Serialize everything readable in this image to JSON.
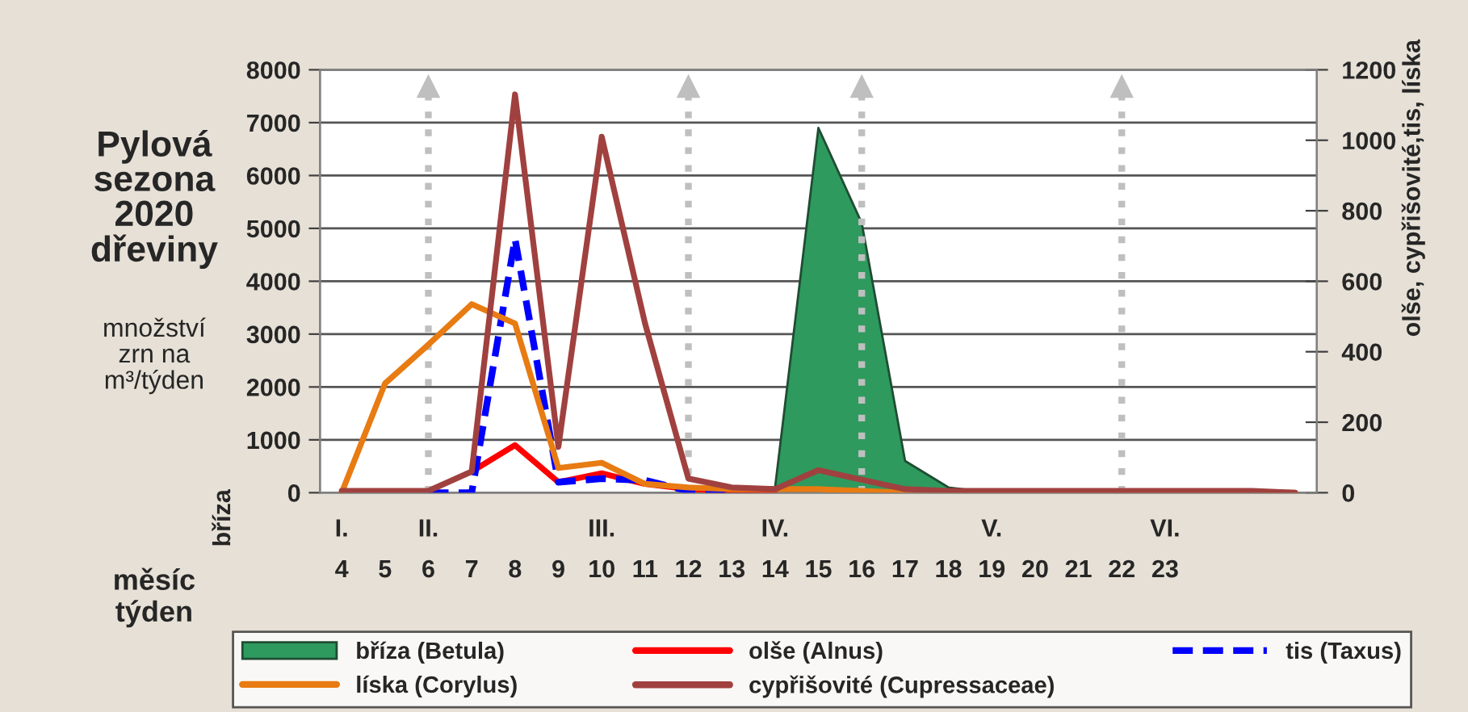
{
  "chart_data": {
    "type": "line",
    "title": "Pylová\nsezona\n2020\ndřeviny",
    "subtitle": "množství\nzrn na\nm³/týden",
    "ylabel": "bříza",
    "y2label": "olše, cypřišovité,tis, líska",
    "categories": [
      "I.\n4",
      "5",
      "II.\n6",
      "7",
      "8",
      "9",
      "III.\n10",
      "11",
      "12",
      "13",
      "IV.\n14",
      "15",
      "16",
      "17",
      "18",
      "V.\n19",
      "20",
      "21",
      "22",
      "VI.\n23",
      null,
      null,
      null
    ],
    "series": [
      {
        "name": "bříza (Betula)",
        "type": "area",
        "color": "#2e9a5e",
        "values": [
          0,
          0,
          0,
          0,
          0,
          0,
          0,
          0,
          0,
          0,
          100,
          6900,
          5100,
          600,
          100,
          0,
          0,
          0,
          0,
          0,
          0,
          0,
          0
        ]
      },
      {
        "name": "olše (Alnus)",
        "axis": "y2",
        "color": "#ff0000",
        "line_style": "solid",
        "values": [
          null,
          null,
          null,
          60,
          135,
          30,
          55,
          25,
          10,
          5,
          5,
          null,
          null,
          null,
          null,
          null,
          null,
          null,
          null,
          null,
          null,
          null,
          null
        ]
      },
      {
        "name": "tis (Taxus)",
        "axis": "y2",
        "color": "#0000ff",
        "line_style": "dashed",
        "values": [
          null,
          null,
          0,
          0,
          720,
          30,
          40,
          35,
          5,
          0,
          null,
          null,
          null,
          null,
          null,
          null,
          null,
          null,
          null,
          null,
          null,
          null,
          null
        ]
      },
      {
        "name": "líska (Corylus)",
        "axis": "y2",
        "color": "#e87b12",
        "line_style": "solid",
        "values": [
          0,
          310,
          420,
          535,
          480,
          70,
          85,
          25,
          15,
          10,
          10,
          10,
          5,
          0,
          0,
          0,
          0,
          0,
          0,
          0,
          0,
          0,
          0
        ]
      },
      {
        "name": "cypřišovité (Cupressaceae)",
        "axis": "y2",
        "color": "#a0413f",
        "line_style": "solid",
        "values": [
          5,
          5,
          5,
          60,
          1130,
          130,
          1010,
          480,
          40,
          15,
          10,
          64,
          37,
          10,
          5,
          5,
          5,
          5,
          5,
          5,
          5,
          5,
          0
        ]
      }
    ],
    "ylim": [
      0,
      8000
    ],
    "yticks": [
      0,
      1000,
      2000,
      3000,
      4000,
      5000,
      6000,
      7000,
      8000
    ],
    "y2lim": [
      0,
      1200
    ],
    "y2ticks": [
      0,
      200,
      400,
      600,
      800,
      1000,
      1200
    ],
    "grid": "y",
    "legend": "bottom",
    "ref_lines": [
      {
        "axis": "x",
        "value": "II.\n6",
        "color": "#bfbfbf",
        "line_style": "dotted"
      },
      {
        "axis": "x",
        "value": "12",
        "color": "#bfbfbf",
        "line_style": "dotted"
      },
      {
        "axis": "x",
        "value": "16",
        "color": "#bfbfbf",
        "line_style": "dotted"
      },
      {
        "axis": "x",
        "value": "22",
        "color": "#bfbfbf",
        "line_style": "dotted"
      }
    ],
    "annotations": [
      "měsíc\ntýden"
    ]
  }
}
